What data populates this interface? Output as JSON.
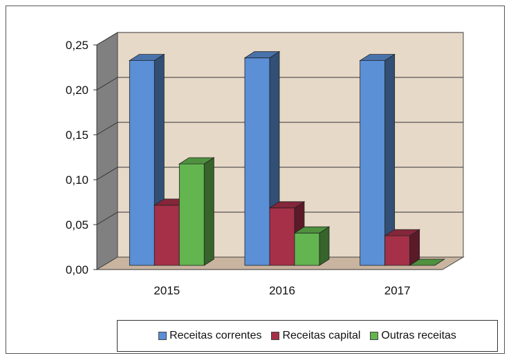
{
  "chart_data": {
    "type": "bar",
    "categories": [
      "2015",
      "2016",
      "2017"
    ],
    "series": [
      {
        "name": "Receitas correntes",
        "values": [
          0.228,
          0.231,
          0.228
        ],
        "color": "#5b8fd6"
      },
      {
        "name": "Receitas capital",
        "values": [
          0.067,
          0.064,
          0.033
        ],
        "color": "#a63048"
      },
      {
        "name": "Outras receitas",
        "values": [
          0.113,
          0.036,
          0.0
        ],
        "color": "#63b54f"
      }
    ],
    "yticks": [
      "0,00",
      "0,05",
      "0,10",
      "0,15",
      "0,20",
      "0,25"
    ],
    "ylim": [
      0,
      0.25
    ],
    "grid": true,
    "legend_position": "bottom",
    "style": "3d-clustered-column",
    "wall_color": "#e7d9c8",
    "floor_color": "#c9b49f",
    "side_wall_color": "#808080"
  }
}
